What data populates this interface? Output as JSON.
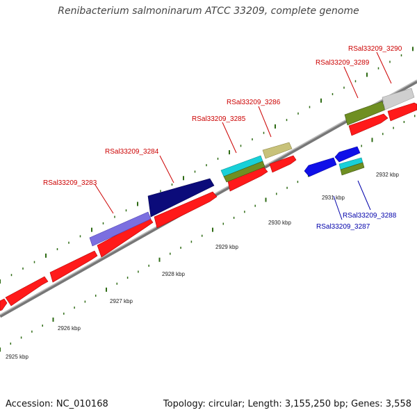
{
  "title": "Renibacterium salmoninarum ATCC 33209, complete genome",
  "footer": {
    "accession": "Accession: NC_010168",
    "summary": "Topology: circular; Length: 3,155,250 bp; Genes: 3,558"
  },
  "ticks": [
    "2925 kbp",
    "2926 kbp",
    "2927 kbp",
    "2928 kbp",
    "2929 kbp",
    "2930 kbp",
    "2931 kbp",
    "2932 kbp"
  ],
  "gene_labels": [
    {
      "text": "RSal33209_3283",
      "strand": "forward"
    },
    {
      "text": "RSal33209_3284",
      "strand": "forward"
    },
    {
      "text": "RSal33209_3285",
      "strand": "forward"
    },
    {
      "text": "RSal33209_3286",
      "strand": "forward"
    },
    {
      "text": "RSal33209_3289",
      "strand": "forward"
    },
    {
      "text": "RSal33209_3290",
      "strand": "forward"
    },
    {
      "text": "RSal33209_3288",
      "strand": "reverse"
    },
    {
      "text": "RSal33209_3287",
      "strand": "reverse"
    }
  ],
  "colors": {
    "forward_label": "#cc0000",
    "reverse_label": "#0000aa",
    "cds": "#ff0000",
    "backbone": "#888888",
    "tick": "#2e6b14",
    "rna_purple": "#7b6fe0",
    "navy": "#0b0b7a",
    "cyan": "#18d0d8",
    "olive": "#6f8f22",
    "khaki": "#c8c27a",
    "grey_gene": "#cfcfcf",
    "blue_gene": "#1010e8"
  }
}
